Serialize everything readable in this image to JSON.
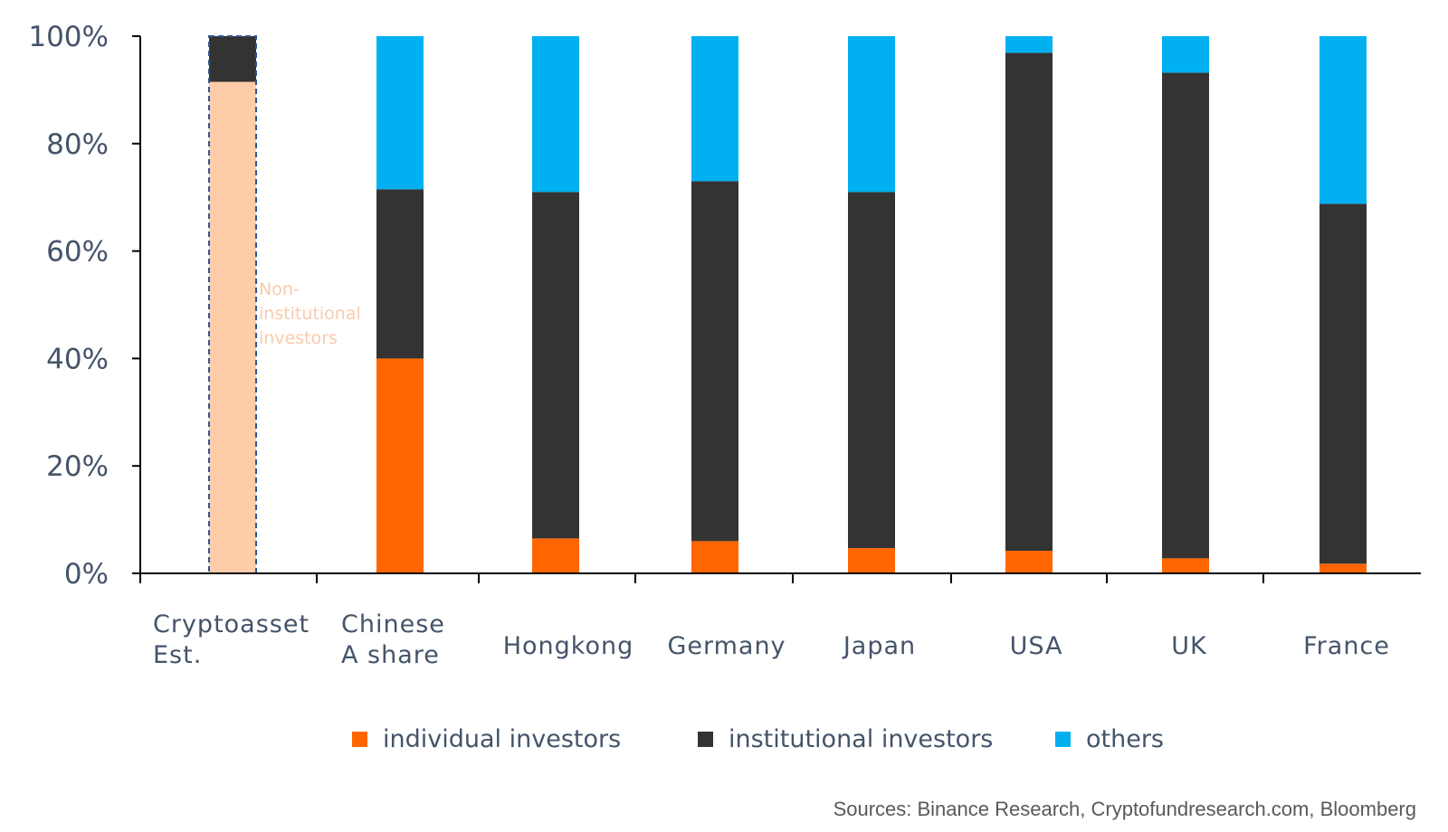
{
  "chart_data": {
    "type": "bar",
    "stacked": true,
    "title": "",
    "xlabel": "",
    "ylabel": "",
    "ylim": [
      0,
      100
    ],
    "y_ticks": [
      "0%",
      "20%",
      "40%",
      "60%",
      "80%",
      "100%"
    ],
    "categories": [
      [
        "Cryptoasset",
        "Est."
      ],
      [
        "Chinese",
        "A share"
      ],
      [
        "Hongkong"
      ],
      [
        "Germany"
      ],
      [
        "Japan"
      ],
      [
        "USA"
      ],
      [
        "UK"
      ],
      [
        "France"
      ]
    ],
    "series": [
      {
        "name": "individual investors",
        "color": "#FF6600",
        "values": [
          0,
          40,
          6.5,
          6,
          4.7,
          4.2,
          2.8,
          1.8
        ]
      },
      {
        "name": "institutional investors",
        "color": "#333333",
        "values": [
          8.5,
          31.5,
          64.5,
          67,
          66.3,
          92.7,
          90.4,
          67
        ]
      },
      {
        "name": "others",
        "color": "#00B0F0",
        "values": [
          0,
          28.5,
          29,
          27,
          29,
          3.1,
          6.8,
          31.2
        ]
      }
    ],
    "special_segment": {
      "category_index": 0,
      "value": 91.5,
      "color": "#FFCCAA",
      "border": "#2F5597",
      "dashed": true
    },
    "annotation": {
      "lines": [
        "Non-",
        "institutional",
        "investors"
      ],
      "color": "#F8CBAD"
    },
    "legend": {
      "placement": "bottom"
    },
    "grid": false
  },
  "source": "Sources: Binance Research, Cryptofundresearch.com, Bloomberg"
}
